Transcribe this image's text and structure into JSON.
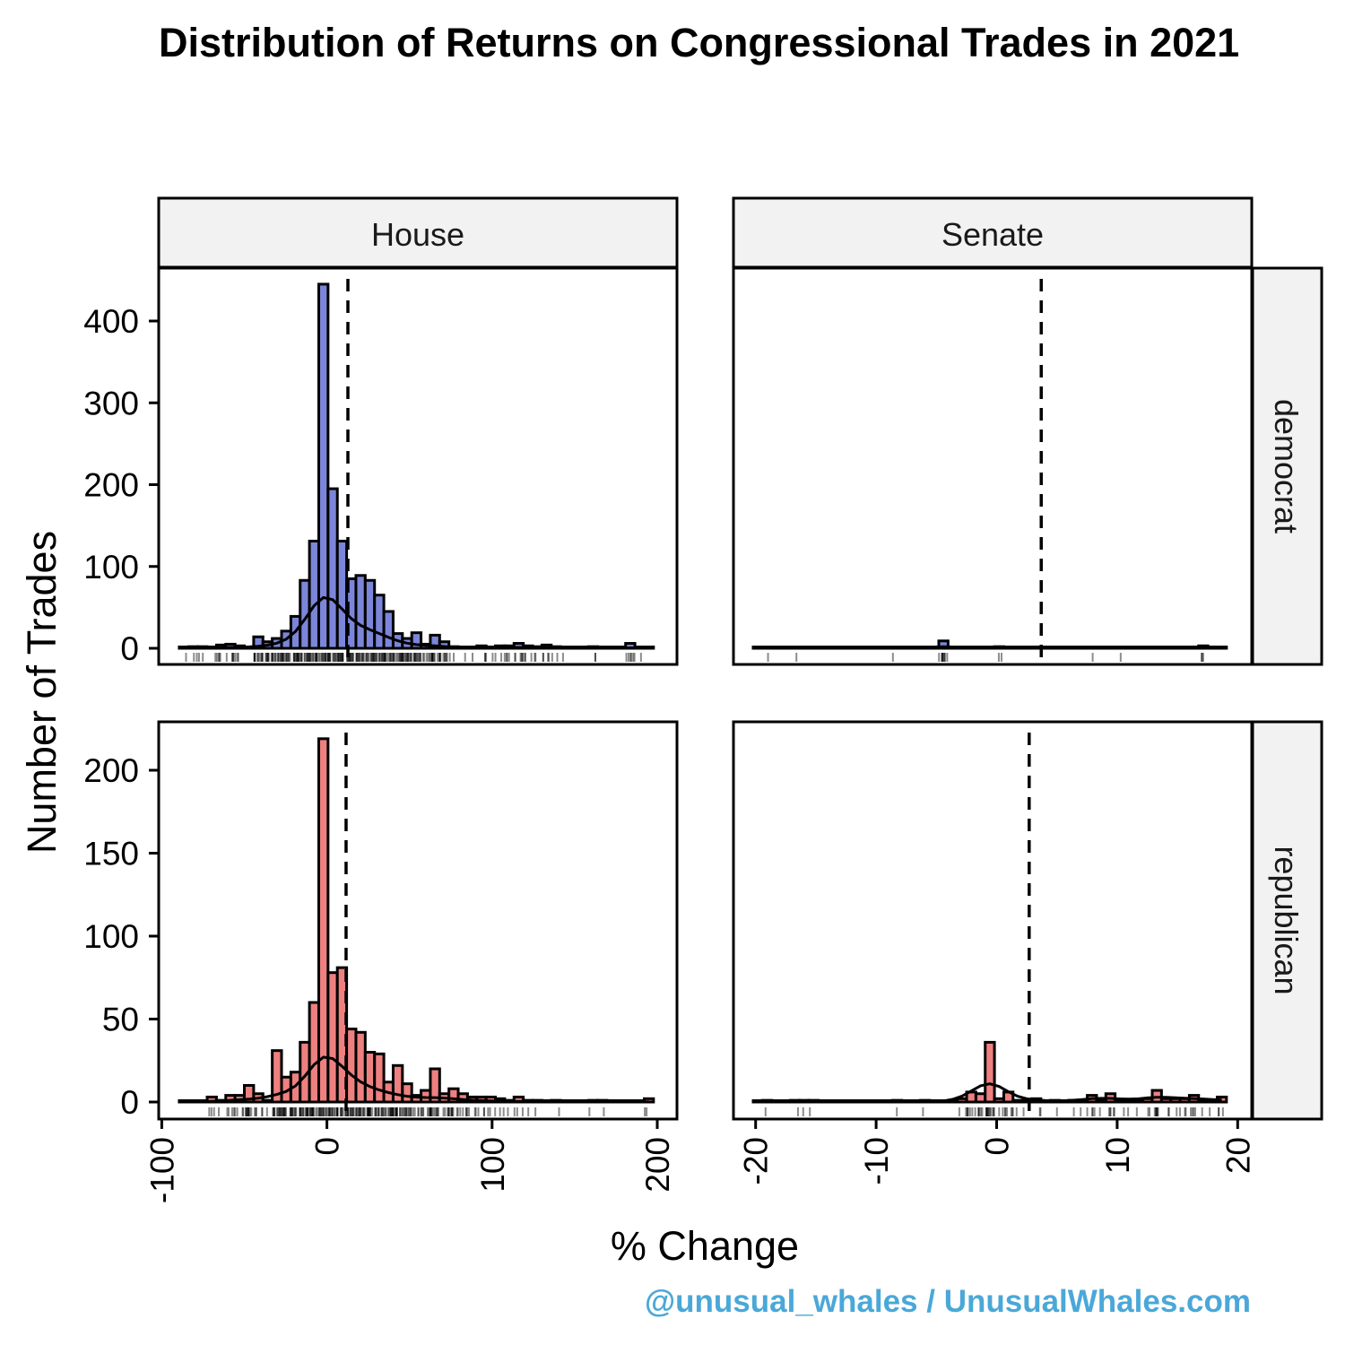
{
  "chart_data": {
    "type": "bar",
    "title": "Distribution of Returns on Congressional Trades in 2021",
    "xlabel": "% Change",
    "ylabel": "Number of Trades",
    "credit": "@unusual_whales / UnusualWhales.com",
    "columns": [
      "House",
      "Senate"
    ],
    "rows": [
      "democrat",
      "republican"
    ],
    "colors": {
      "democrat": "#7b86d9",
      "republican": "#ee8080"
    },
    "x_axes": {
      "House": {
        "range": [
          -100,
          210
        ],
        "ticks": [
          -100,
          0,
          100,
          200
        ],
        "bin_start": -89.4,
        "bin_width": 5.63
      },
      "Senate": {
        "range": [
          -22,
          22
        ],
        "ticks": [
          -20,
          -10,
          0,
          10,
          20
        ],
        "bin_start": -20.2,
        "bin_width": 0.77
      }
    },
    "y_axes": {
      "democrat": {
        "range": [
          -20,
          465
        ],
        "ticks": [
          0,
          100,
          200,
          300,
          400
        ]
      },
      "republican": {
        "range": [
          -10,
          230
        ],
        "ticks": [
          0,
          50,
          100,
          150,
          200
        ]
      }
    },
    "panels": [
      {
        "column": "House",
        "row": "democrat",
        "mean_line": 12.7,
        "density_peak": 62,
        "counts": [
          1,
          2,
          2,
          1,
          4,
          5,
          3,
          0,
          14,
          8,
          12,
          21,
          39,
          83,
          131,
          445,
          195,
          131,
          85,
          89,
          83,
          65,
          45,
          18,
          12,
          19,
          5,
          16,
          8,
          2,
          1,
          1,
          3,
          1,
          3,
          3,
          6,
          3,
          2,
          4,
          2,
          1,
          0,
          0,
          2,
          0,
          0,
          0,
          6,
          1,
          0
        ]
      },
      {
        "column": "Senate",
        "row": "democrat",
        "mean_line": 3.7,
        "density_peak": 2,
        "counts": [
          0,
          1,
          0,
          0,
          1,
          0,
          0,
          0,
          0,
          0,
          0,
          0,
          0,
          0,
          0,
          1,
          0,
          0,
          0,
          0,
          9,
          0,
          0,
          0,
          0,
          0,
          2,
          0,
          0,
          0,
          0,
          0,
          0,
          0,
          0,
          0,
          1,
          0,
          0,
          1,
          0,
          0,
          0,
          0,
          0,
          0,
          0,
          0,
          3,
          0,
          0
        ]
      },
      {
        "column": "House",
        "row": "republican",
        "mean_line": 11.6,
        "density_peak": 27,
        "counts": [
          0,
          0,
          0,
          3,
          1,
          4,
          4,
          10,
          5,
          1,
          31,
          15,
          18,
          36,
          60,
          219,
          78,
          81,
          44,
          42,
          30,
          29,
          12,
          22,
          11,
          4,
          7,
          20,
          5,
          8,
          5,
          3,
          3,
          3,
          2,
          1,
          3,
          1,
          1,
          0,
          1,
          0,
          0,
          0,
          1,
          1,
          0,
          0,
          0,
          0,
          2
        ]
      },
      {
        "column": "Senate",
        "row": "republican",
        "mean_line": 2.7,
        "density_peak": 11,
        "counts": [
          0,
          1,
          0,
          0,
          1,
          1,
          1,
          0,
          0,
          0,
          0,
          0,
          0,
          0,
          0,
          1,
          0,
          0,
          1,
          0,
          0,
          0,
          2,
          6,
          5,
          36,
          2,
          6,
          1,
          1,
          2,
          0,
          1,
          0,
          1,
          1,
          4,
          1,
          5,
          1,
          1,
          1,
          2,
          7,
          2,
          2,
          2,
          4,
          1,
          1,
          3
        ]
      }
    ]
  }
}
